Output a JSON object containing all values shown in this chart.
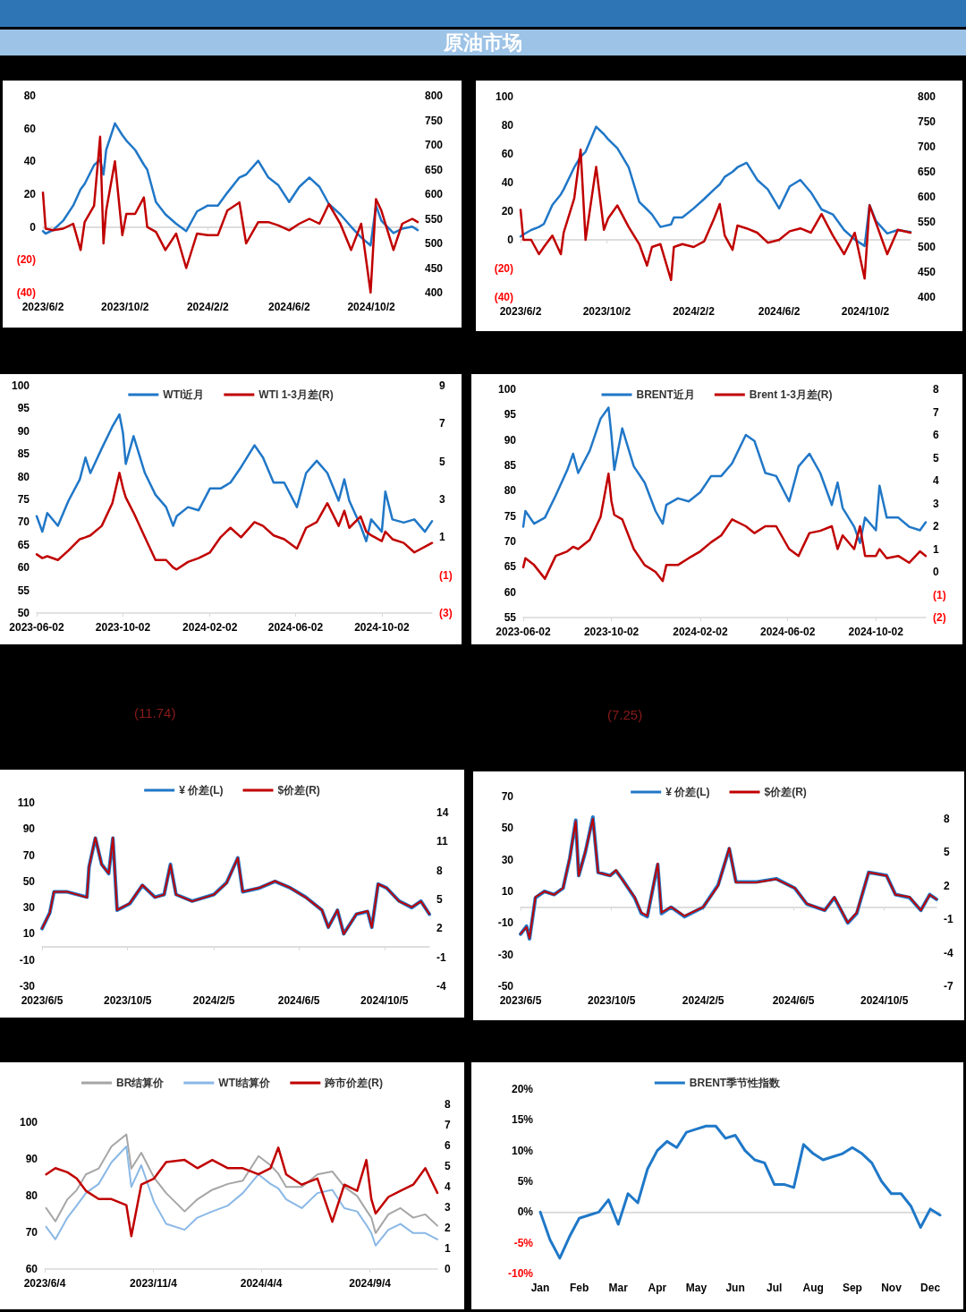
{
  "chart_data": [
    {
      "type": "line",
      "title": "原油市场",
      "x": [
        "2023-06-02",
        "2023-06-06",
        "2023-06-17",
        "2023-07-02",
        "2023-07-17",
        "2023-07-28",
        "2023-08-03",
        "2023-08-17",
        "2023-08-26",
        "2023-08-31",
        "2023-09-04",
        "2023-09-17",
        "2023-09-28",
        "2023-10-04",
        "2023-10-17",
        "2023-10-30",
        "2023-11-04",
        "2023-11-17",
        "2023-12-01",
        "2023-12-17",
        "2024-01-01",
        "2024-01-17",
        "2024-02-02",
        "2024-02-17",
        "2024-03-02",
        "2024-03-20",
        "2024-03-30",
        "2024-04-17",
        "2024-05-02",
        "2024-05-17",
        "2024-06-02",
        "2024-06-17",
        "2024-07-02",
        "2024-07-17",
        "2024-07-31",
        "2024-08-17",
        "2024-09-02",
        "2024-09-17",
        "2024-10-01",
        "2024-10-09",
        "2024-10-17",
        "2024-11-04",
        "2024-11-17",
        "2024-12-02",
        "2024-12-10"
      ],
      "series": [
        {
          "color": "#2077c7",
          "axis": "y2",
          "values": [
            525,
            520,
            527,
            546,
            577,
            610,
            621,
            659,
            670,
            640,
            690,
            744,
            720,
            709,
            690,
            660,
            650,
            584,
            559,
            540,
            525,
            565,
            577,
            577,
            603,
            634,
            640,
            668,
            634,
            618,
            584,
            615,
            634,
            615,
            580,
            559,
            534,
            512,
            496,
            577,
            546,
            521,
            530,
            534,
            527
          ]
        },
        {
          "color": "#c00000",
          "values": [
            21,
            -1,
            -2,
            -1,
            2,
            -14,
            3,
            13,
            55,
            -10,
            10,
            40,
            -5,
            8,
            8,
            18,
            0,
            -3,
            -14,
            -4,
            -25,
            -4,
            -5,
            -5,
            10,
            15,
            -10,
            3,
            3,
            1,
            -2,
            2,
            5,
            2,
            14,
            2,
            -14,
            2,
            -40,
            17,
            10,
            -14,
            2,
            5,
            3
          ]
        }
      ],
      "xlim": [
        "2023-06-02",
        "2024-12-10"
      ],
      "xticks": [
        {
          "value": "2023-06-02",
          "label": "2023/6/2"
        },
        {
          "value": "2023-10-02",
          "label": "2023/10/2"
        },
        {
          "value": "2024-02-02",
          "label": "2024/2/2"
        },
        {
          "value": "2024-06-02",
          "label": "2024/6/2"
        },
        {
          "value": "2024-10-02",
          "label": "2024/10/2"
        }
      ],
      "ylim": [
        -40,
        80
      ],
      "yticks": [
        80,
        60,
        40,
        20,
        0,
        {
          "value": -20,
          "label": "(20)"
        },
        {
          "value": -40,
          "label": "(40)"
        }
      ],
      "y2lim": [
        400,
        800
      ],
      "y2ticks": [
        400,
        450,
        500,
        550,
        600,
        650,
        700,
        750,
        800
      ],
      "marker": "none",
      "ref_lines": [
        {
          "axis": "y",
          "value": 0,
          "color": "#d9d9d9"
        }
      ]
    },
    {
      "type": "line",
      "x": [
        "2023-06-02",
        "2023-06-06",
        "2023-06-17",
        "2023-06-28",
        "2023-07-05",
        "2023-07-17",
        "2023-07-29",
        "2023-08-02",
        "2023-08-17",
        "2023-08-26",
        "2023-09-02",
        "2023-09-17",
        "2023-09-28",
        "2023-10-04",
        "2023-10-17",
        "2023-11-02",
        "2023-11-17",
        "2023-11-28",
        "2023-12-05",
        "2023-12-17",
        "2024-01-01",
        "2024-01-05",
        "2024-01-17",
        "2024-02-02",
        "2024-02-17",
        "2024-03-02",
        "2024-03-10",
        "2024-03-17",
        "2024-03-28",
        "2024-04-04",
        "2024-04-17",
        "2024-05-02",
        "2024-05-17",
        "2024-06-02",
        "2024-06-17",
        "2024-07-02",
        "2024-07-17",
        "2024-08-01",
        "2024-08-17",
        "2024-09-02",
        "2024-09-17",
        "2024-10-01",
        "2024-10-08",
        "2024-10-17",
        "2024-11-02",
        "2024-11-17",
        "2024-12-05"
      ],
      "series": [
        {
          "color": "#2077c7",
          "axis": "y2",
          "values": [
            521,
            525,
            534,
            540,
            546,
            584,
            605,
            615,
            659,
            680,
            690,
            740,
            725,
            715,
            697,
            659,
            590,
            575,
            565,
            540,
            545,
            559,
            559,
            577,
            596,
            615,
            625,
            640,
            650,
            659,
            668,
            634,
            615,
            577,
            621,
            634,
            609,
            575,
            565,
            534,
            515,
            502,
            584,
            552,
            527,
            534,
            530
          ]
        },
        {
          "color": "#c00000",
          "values": [
            21,
            0,
            0,
            -10,
            -5,
            3,
            -10,
            5,
            29,
            63,
            0,
            51,
            7,
            15,
            24,
            9,
            -3,
            -18,
            -5,
            -3,
            -28,
            -5,
            -3,
            -5,
            -1,
            15,
            25,
            3,
            -7,
            10,
            8,
            5,
            -2,
            0,
            6,
            8,
            5,
            18,
            3,
            -10,
            5,
            -27,
            24,
            12,
            -10,
            7,
            5
          ]
        }
      ],
      "xlim": [
        "2023-06-02",
        "2024-12-05"
      ],
      "xticks": [
        {
          "value": "2023-06-02",
          "label": "2023/6/2"
        },
        {
          "value": "2023-10-02",
          "label": "2023/10/2"
        },
        {
          "value": "2024-02-02",
          "label": "2024/2/2"
        },
        {
          "value": "2024-06-02",
          "label": "2024/6/2"
        },
        {
          "value": "2024-10-02",
          "label": "2024/10/2"
        }
      ],
      "ylim": [
        -40,
        100
      ],
      "yticks": [
        100,
        80,
        60,
        40,
        20,
        0,
        {
          "value": -20,
          "label": "(20)"
        },
        {
          "value": -40,
          "label": "(40)"
        }
      ],
      "y2lim": [
        400,
        800
      ],
      "y2ticks": [
        400,
        450,
        500,
        550,
        600,
        650,
        700,
        750,
        800
      ],
      "marker": "none",
      "ref_lines": [
        {
          "axis": "y",
          "value": 0,
          "color": "#d9d9d9"
        }
      ]
    },
    {
      "type": "line",
      "x": [
        "2023-06-02",
        "2023-06-10",
        "2023-06-17",
        "2023-07-02",
        "2023-07-17",
        "2023-08-02",
        "2023-08-10",
        "2023-08-17",
        "2023-09-02",
        "2023-09-17",
        "2023-09-27",
        "2023-10-02",
        "2023-10-06",
        "2023-10-17",
        "2023-11-02",
        "2023-11-17",
        "2023-12-02",
        "2023-12-12",
        "2023-12-17",
        "2024-01-02",
        "2024-01-17",
        "2024-02-02",
        "2024-02-17",
        "2024-03-02",
        "2024-03-17",
        "2024-04-05",
        "2024-04-17",
        "2024-05-02",
        "2024-05-17",
        "2024-06-04",
        "2024-06-17",
        "2024-07-02",
        "2024-07-17",
        "2024-08-02",
        "2024-08-10",
        "2024-08-17",
        "2024-09-02",
        "2024-09-10",
        "2024-09-17",
        "2024-10-02",
        "2024-10-07",
        "2024-10-17",
        "2024-11-02",
        "2024-11-17",
        "2024-12-02",
        "2024-12-12"
      ],
      "series": [
        {
          "name": "WTI近月",
          "color": "#2077c7",
          "values": [
            71.3,
            67.9,
            72,
            69.2,
            74.7,
            79.4,
            84.2,
            80.8,
            86.2,
            91,
            93.7,
            89.6,
            82.8,
            88.9,
            80.8,
            76,
            73.3,
            69.2,
            71.3,
            73.3,
            72.6,
            77.4,
            77.4,
            78.7,
            82.1,
            86.9,
            84.2,
            78.7,
            78.7,
            73.3,
            80.8,
            83.5,
            80.8,
            74.7,
            79.4,
            74.7,
            69.2,
            65.8,
            70.6,
            67.9,
            76.7,
            70.6,
            69.9,
            70.6,
            67.9,
            70.2
          ]
        },
        {
          "name": "WTI 1-3月差(R)",
          "color": "#c00000",
          "axis": "y2",
          "values": [
            0.1,
            -0.1,
            0,
            -0.2,
            0.3,
            0.9,
            1,
            1.1,
            1.6,
            2.8,
            4.4,
            3.6,
            3.1,
            2.3,
            1,
            -0.2,
            -0.2,
            -0.6,
            -0.7,
            -0.3,
            -0.1,
            0.2,
            1,
            1.5,
            1,
            1.8,
            1.6,
            1.1,
            0.9,
            0.4,
            1.5,
            1.8,
            2.8,
            1.6,
            2.4,
            1.5,
            2.1,
            1.3,
            1.1,
            0.8,
            1.3,
            0.9,
            0.7,
            0.2,
            0.5,
            0.7
          ]
        }
      ],
      "xlim": [
        "2023-06-02",
        "2024-12-12"
      ],
      "xticks": [
        {
          "value": "2023-06-02",
          "label": "2023-06-02"
        },
        {
          "value": "2023-10-02",
          "label": "2023-10-02"
        },
        {
          "value": "2024-02-02",
          "label": "2024-02-02"
        },
        {
          "value": "2024-06-02",
          "label": "2024-06-02"
        },
        {
          "value": "2024-10-02",
          "label": "2024-10-02"
        }
      ],
      "ylim": [
        50,
        100
      ],
      "yticks": [
        50,
        55,
        60,
        65,
        70,
        75,
        80,
        85,
        90,
        95,
        100
      ],
      "y2lim": [
        -3,
        9
      ],
      "y2ticks": [
        {
          "value": -3,
          "label": "(3)"
        },
        {
          "value": -1,
          "label": "(1)"
        },
        1,
        3,
        5,
        7,
        9
      ],
      "marker": "none",
      "legend": "top"
    },
    {
      "type": "line",
      "x": [
        "2023-06-02",
        "2023-06-05",
        "2023-06-17",
        "2023-07-02",
        "2023-07-17",
        "2023-08-02",
        "2023-08-10",
        "2023-08-17",
        "2023-09-02",
        "2023-09-17",
        "2023-09-28",
        "2023-10-02",
        "2023-10-06",
        "2023-10-17",
        "2023-11-02",
        "2023-11-17",
        "2023-12-02",
        "2023-12-12",
        "2023-12-17",
        "2024-01-02",
        "2024-01-17",
        "2024-02-02",
        "2024-02-17",
        "2024-03-02",
        "2024-03-17",
        "2024-04-05",
        "2024-04-17",
        "2024-05-02",
        "2024-05-17",
        "2024-06-04",
        "2024-06-17",
        "2024-07-02",
        "2024-07-17",
        "2024-08-02",
        "2024-08-10",
        "2024-08-17",
        "2024-09-02",
        "2024-09-10",
        "2024-09-17",
        "2024-10-02",
        "2024-10-07",
        "2024-10-17",
        "2024-11-02",
        "2024-11-17",
        "2024-12-02",
        "2024-12-10"
      ],
      "series": [
        {
          "name": "BRENT近月",
          "color": "#2077c7",
          "values": [
            72.9,
            76,
            73.5,
            74.7,
            79.1,
            84.1,
            87.3,
            83.5,
            87.9,
            94.2,
            96.4,
            91,
            84.1,
            92.3,
            84.8,
            81.6,
            76,
            73.5,
            77.2,
            78.5,
            77.9,
            79.7,
            82.9,
            82.9,
            85.4,
            91,
            89.8,
            83.5,
            82.9,
            77.9,
            84.8,
            87.3,
            83.5,
            77.2,
            81.6,
            76.6,
            72.9,
            69.7,
            74.7,
            72.2,
            81,
            74.7,
            74.7,
            72.9,
            72.2,
            73.8
          ]
        },
        {
          "name": "Brent 1-3月差(R)",
          "color": "#c00000",
          "axis": "y2",
          "values": [
            0.2,
            0.6,
            0.3,
            -0.3,
            0.7,
            0.9,
            1.1,
            1,
            1.4,
            2.4,
            4.3,
            3.1,
            2.5,
            2.3,
            1,
            0.3,
            0,
            -0.4,
            0.3,
            0.3,
            0.6,
            0.9,
            1.3,
            1.6,
            2.3,
            2,
            1.7,
            2,
            2,
            1,
            0.7,
            1.7,
            1.8,
            2,
            1,
            1.6,
            1,
            2,
            0.7,
            0.7,
            1,
            0.6,
            0.7,
            0.4,
            0.9,
            0.7
          ]
        }
      ],
      "xlim": [
        "2023-06-02",
        "2024-12-10"
      ],
      "xticks": [
        {
          "value": "2023-06-02",
          "label": "2023-06-02"
        },
        {
          "value": "2023-10-02",
          "label": "2023-10-02"
        },
        {
          "value": "2024-02-02",
          "label": "2024-02-02"
        },
        {
          "value": "2024-06-02",
          "label": "2024-06-02"
        },
        {
          "value": "2024-10-02",
          "label": "2024-10-02"
        }
      ],
      "ylim": [
        55,
        100
      ],
      "yticks": [
        55,
        60,
        65,
        70,
        75,
        80,
        85,
        90,
        95,
        100
      ],
      "y2lim": [
        -2,
        8
      ],
      "y2ticks": [
        {
          "value": -2,
          "label": "(2)"
        },
        {
          "value": -1,
          "label": "(1)"
        },
        0,
        1,
        2,
        3,
        4,
        5,
        6,
        7,
        8
      ],
      "marker": "none",
      "legend": "top"
    },
    {
      "type": "line",
      "annotations": [
        "(11.74)"
      ],
      "x": [
        "2023-06-05",
        "2023-06-16",
        "2023-06-22",
        "2023-07-11",
        "2023-08-08",
        "2023-08-11",
        "2023-08-20",
        "2023-08-29",
        "2023-09-08",
        "2023-09-14",
        "2023-09-20",
        "2023-10-08",
        "2023-10-26",
        "2023-11-13",
        "2023-11-26",
        "2023-12-05",
        "2023-12-13",
        "2024-01-05",
        "2024-02-05",
        "2024-02-23",
        "2024-03-10",
        "2024-03-17",
        "2024-04-10",
        "2024-05-02",
        "2024-05-24",
        "2024-06-15",
        "2024-07-08",
        "2024-07-17",
        "2024-07-30",
        "2024-08-08",
        "2024-08-26",
        "2024-09-11",
        "2024-09-17",
        "2024-09-26",
        "2024-10-08",
        "2024-10-26",
        "2024-11-13",
        "2024-11-26",
        "2024-12-08"
      ],
      "series": [
        {
          "name": "¥ 价差(L)",
          "color": "#2077c7",
          "values": [
            14,
            26,
            42,
            42,
            38,
            61,
            83,
            63,
            56,
            83,
            28,
            33,
            47,
            38,
            40,
            63,
            40,
            35,
            40,
            49,
            68,
            42,
            45,
            50,
            45,
            38,
            28,
            15,
            28,
            10,
            25,
            27,
            15,
            48,
            45,
            35,
            30,
            35,
            25
          ]
        },
        {
          "name": "$价差(R)",
          "color": "#c00000",
          "axis": "y2",
          "values": [
            2,
            3.6,
            5.8,
            5.8,
            5.2,
            8.4,
            11.4,
            8.6,
            7.7,
            11.4,
            3.9,
            4.6,
            6.5,
            5.2,
            5.5,
            8.6,
            5.5,
            4.8,
            5.5,
            6.7,
            9.3,
            5.8,
            6.2,
            6.9,
            6.2,
            5.2,
            3.9,
            2.1,
            3.9,
            1.4,
            3.5,
            3.8,
            2.1,
            6.6,
            6.2,
            4.8,
            4.2,
            4.8,
            3.5
          ]
        }
      ],
      "xlim": [
        "2023-06-05",
        "2024-12-08"
      ],
      "xticks": [
        {
          "value": "2023-06-05",
          "label": "2023/6/5"
        },
        {
          "value": "2023-10-05",
          "label": "2023/10/5"
        },
        {
          "value": "2024-02-05",
          "label": "2024/2/5"
        },
        {
          "value": "2024-06-05",
          "label": "2024/6/5"
        },
        {
          "value": "2024-10-05",
          "label": "2024/10/5"
        }
      ],
      "ylim": [
        -30,
        110
      ],
      "yticks": [
        -30,
        -10,
        10,
        30,
        50,
        70,
        90,
        110
      ],
      "y2lim": [
        -4,
        14
      ],
      "y2ticks": [
        -4,
        -1,
        2,
        5,
        8,
        11,
        14
      ],
      "marker": "none",
      "legend": "top",
      "ref_lines": [
        {
          "axis": "y",
          "value": 0,
          "color": "#d9d9d9"
        }
      ]
    },
    {
      "type": "line",
      "annotations": [
        "(7.25)"
      ],
      "x": [
        "2023-06-05",
        "2023-06-13",
        "2023-06-17",
        "2023-06-25",
        "2023-07-07",
        "2023-07-20",
        "2023-08-01",
        "2023-08-10",
        "2023-08-18",
        "2023-08-22",
        "2023-08-31",
        "2023-09-10",
        "2023-09-17",
        "2023-10-03",
        "2023-10-11",
        "2023-10-19",
        "2023-11-05",
        "2023-11-14",
        "2023-11-22",
        "2023-12-06",
        "2023-12-11",
        "2023-12-24",
        "2024-01-11",
        "2024-02-05",
        "2024-02-25",
        "2024-03-11",
        "2024-03-20",
        "2024-04-17",
        "2024-05-13",
        "2024-06-07",
        "2024-06-23",
        "2024-07-17",
        "2024-07-30",
        "2024-08-17",
        "2024-08-29",
        "2024-09-14",
        "2024-10-08",
        "2024-10-20",
        "2024-11-08",
        "2024-11-23",
        "2024-12-05",
        "2024-12-14"
      ],
      "series": [
        {
          "name": "¥ 价差(L)",
          "color": "#2077c7",
          "values": [
            -17,
            -12,
            -20,
            6,
            10,
            8,
            12,
            31,
            55,
            20,
            35,
            57,
            22,
            20,
            23,
            18,
            6,
            -4,
            -6,
            27,
            -4,
            0,
            -6,
            0,
            14,
            37,
            16,
            16,
            18,
            12,
            2,
            -2,
            6,
            -10,
            -4,
            22,
            20,
            8,
            6,
            -2,
            8,
            5
          ]
        },
        {
          "name": "$价差(R)",
          "color": "#c00000",
          "axis": "y2",
          "values": [
            -2.3,
            -1.7,
            -2.7,
            1,
            1.5,
            1.2,
            1.8,
            4.5,
            7.8,
            2.9,
            5.1,
            8,
            3.2,
            2.9,
            3.4,
            2.6,
            1,
            -0.4,
            -0.7,
            4,
            -0.4,
            0.1,
            -0.7,
            0.1,
            2,
            5.4,
            2.3,
            2.3,
            2.6,
            1.8,
            0.4,
            -0.2,
            1,
            -1.3,
            -0.4,
            3.2,
            2.9,
            1.2,
            1,
            -0.2,
            1.2,
            0.8
          ]
        }
      ],
      "xlim": [
        "2023-06-05",
        "2024-12-14"
      ],
      "xticks": [
        {
          "value": "2023-06-05",
          "label": "2023/6/5"
        },
        {
          "value": "2023-10-05",
          "label": "2023/10/5"
        },
        {
          "value": "2024-02-05",
          "label": "2024/2/5"
        },
        {
          "value": "2024-06-05",
          "label": "2024/6/5"
        },
        {
          "value": "2024-10-05",
          "label": "2024/10/5"
        }
      ],
      "ylim": [
        -50,
        70
      ],
      "yticks": [
        -50,
        -30,
        -10,
        10,
        30,
        50,
        70
      ],
      "y2lim": [
        -7,
        8
      ],
      "y2ticks": [
        -7,
        -4,
        -1,
        2,
        5,
        8
      ],
      "marker": "none",
      "legend": "top",
      "ref_lines": [
        {
          "axis": "y",
          "value": 0,
          "color": "#d9d9d9"
        }
      ]
    },
    {
      "type": "line",
      "x": [
        "2023-06-06",
        "2023-06-19",
        "2023-07-06",
        "2023-07-19",
        "2023-08-01",
        "2023-08-19",
        "2023-09-06",
        "2023-09-27",
        "2023-10-04",
        "2023-10-18",
        "2023-11-05",
        "2023-11-22",
        "2023-12-18",
        "2024-01-05",
        "2024-01-26",
        "2024-02-17",
        "2024-03-09",
        "2024-03-31",
        "2024-04-17",
        "2024-04-28",
        "2024-05-09",
        "2024-05-31",
        "2024-06-22",
        "2024-07-13",
        "2024-07-30",
        "2024-08-17",
        "2024-08-30",
        "2024-09-06",
        "2024-09-12",
        "2024-09-30",
        "2024-10-17",
        "2024-11-04",
        "2024-11-21",
        "2024-12-08"
      ],
      "series": [
        {
          "name": "BR结算价",
          "color": "#a6a6a6",
          "values": [
            76.6,
            73,
            79,
            81.5,
            85.8,
            87.4,
            93.4,
            96.7,
            87.4,
            91.7,
            84.9,
            80.7,
            75.7,
            79,
            81.6,
            83.2,
            84.1,
            90.8,
            88.3,
            86,
            82.4,
            82.4,
            85.8,
            86.6,
            82.4,
            79.9,
            76,
            74,
            69.8,
            74.9,
            76.6,
            74,
            74.9,
            71.8
          ]
        },
        {
          "name": "WTI结算价",
          "color": "#8ab8e6",
          "values": [
            71.5,
            68.1,
            74,
            77.3,
            80.7,
            83.2,
            89.1,
            93.4,
            82.4,
            88.3,
            78.2,
            72.3,
            70.7,
            74,
            75.7,
            77.3,
            80.7,
            85.8,
            83.2,
            82,
            79,
            76.6,
            80.7,
            81.6,
            76.6,
            75.7,
            72,
            69.8,
            66.4,
            70.7,
            72.3,
            69.8,
            69.8,
            68.1
          ]
        },
        {
          "name": "跨市价差(R)",
          "color": "#c00000",
          "axis": "y2",
          "values": [
            4.6,
            4.9,
            4.7,
            4.4,
            3.8,
            3.4,
            3.4,
            3.1,
            1.6,
            4.1,
            4.4,
            5.2,
            5.3,
            4.9,
            5.3,
            4.9,
            4.9,
            4.6,
            4.9,
            5.9,
            4.6,
            4.1,
            4.4,
            2.3,
            4.1,
            3.8,
            5.3,
            3.4,
            2.7,
            3.5,
            3.8,
            4.1,
            4.9,
            3.7
          ]
        }
      ],
      "xlim": [
        "2023-06-04",
        "2024-12-08"
      ],
      "xticks": [
        {
          "value": "2023-06-04",
          "label": "2023/6/4"
        },
        {
          "value": "2023-11-04",
          "label": "2023/11/4"
        },
        {
          "value": "2024-04-04",
          "label": "2024/4/4"
        },
        {
          "value": "2024-09-04",
          "label": "2024/9/4"
        }
      ],
      "ylim": [
        60,
        100
      ],
      "yticks": [
        60,
        70,
        80,
        90,
        100
      ],
      "y2lim": [
        0,
        8
      ],
      "y2ticks": [
        0,
        1,
        2,
        3,
        4,
        5,
        6,
        7,
        8
      ],
      "marker": "none",
      "legend": "top"
    },
    {
      "type": "line",
      "categories": [
        "Jan",
        null,
        null,
        null,
        "Feb",
        null,
        null,
        null,
        "Mar",
        null,
        null,
        null,
        "Apr",
        null,
        null,
        null,
        "May",
        null,
        null,
        null,
        "Jun",
        null,
        null,
        null,
        "Jul",
        null,
        null,
        null,
        "Aug",
        null,
        null,
        null,
        "Sep",
        null,
        null,
        null,
        "Nov",
        null,
        null,
        null,
        "Dec",
        null
      ],
      "series": [
        {
          "name": "BRENT季节性指数",
          "color": "#1f78c8",
          "values": [
            0,
            -4.5,
            -7.5,
            -4,
            -1,
            -0.5,
            0,
            2,
            -2,
            3,
            1.5,
            7,
            10,
            11.5,
            10.5,
            13,
            13.5,
            14,
            14,
            12,
            12.5,
            10,
            8.5,
            8,
            4.5,
            4.5,
            4,
            11,
            9.5,
            8.5,
            9,
            9.5,
            10.5,
            9.5,
            8,
            5,
            3,
            3,
            1,
            -2.5,
            0.5,
            -0.5
          ]
        }
      ],
      "ylim": [
        -10,
        20
      ],
      "yticks": [
        {
          "value": -10,
          "label": "-10%"
        },
        {
          "value": -5,
          "label": "-5%"
        },
        {
          "value": 0,
          "label": "0%"
        },
        {
          "value": 5,
          "label": "5%"
        },
        {
          "value": 10,
          "label": "10%"
        },
        {
          "value": 15,
          "label": "15%"
        },
        {
          "value": 20,
          "label": "20%"
        }
      ],
      "marker": "none",
      "legend": "top",
      "ref_lines": [
        {
          "axis": "y",
          "value": 0,
          "color": "#d9d9d9"
        }
      ]
    }
  ]
}
